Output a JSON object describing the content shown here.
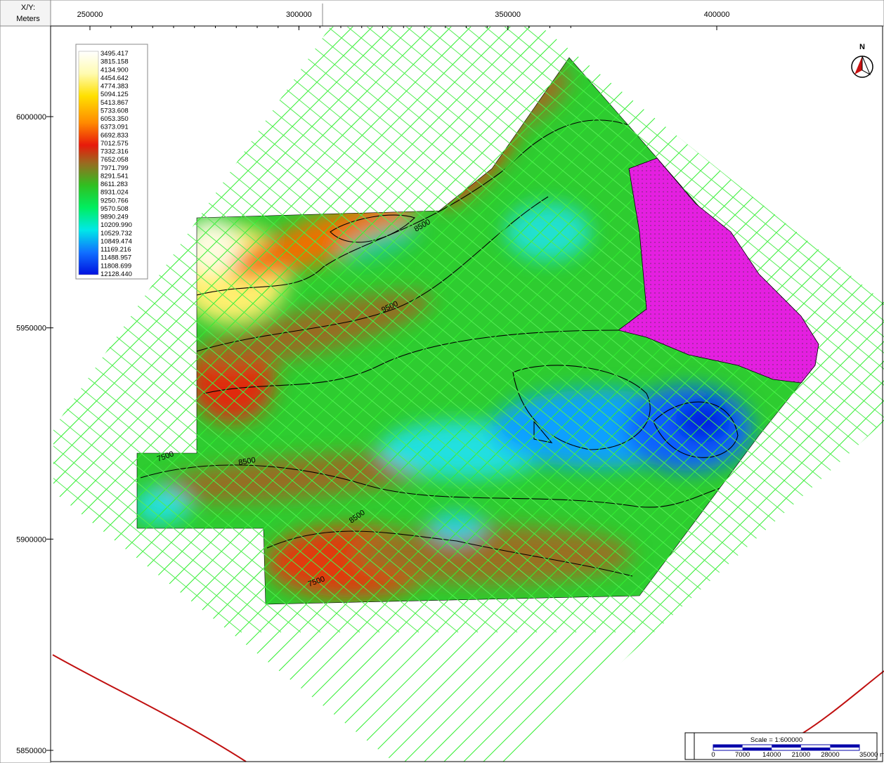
{
  "header": {
    "corner_top": "X/Y:",
    "corner_bottom": "Meters"
  },
  "x_axis": {
    "ticks": [
      250000,
      300000,
      350000,
      400000
    ]
  },
  "y_axis": {
    "ticks": [
      6000000,
      5950000,
      5900000,
      5850000
    ]
  },
  "legend": {
    "values": [
      "3495.417",
      "3815.158",
      "4134.900",
      "4454.642",
      "4774.383",
      "5094.125",
      "5413.867",
      "5733.608",
      "6053.350",
      "6373.091",
      "6692.833",
      "7012.575",
      "7332.316",
      "7652.058",
      "7971.799",
      "8291.541",
      "8611.283",
      "8931.024",
      "9250.766",
      "9570.508",
      "9890.249",
      "10209.990",
      "10529.732",
      "10849.474",
      "11169.216",
      "11488.957",
      "11808.699",
      "12128.440"
    ]
  },
  "north": "N",
  "scale": {
    "title": "Scale = 1:600000",
    "ticks": [
      "0",
      "7000",
      "14000",
      "21000",
      "28000",
      "35000 m"
    ]
  },
  "contour_labels": [
    "7500",
    "8500",
    "8500",
    "9500",
    "8500",
    "7500"
  ]
}
